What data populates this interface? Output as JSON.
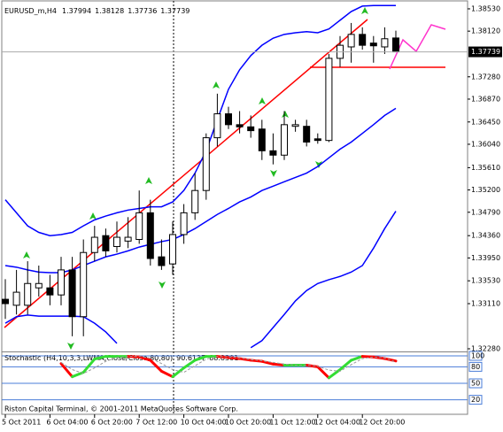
{
  "chart_data": [
    {
      "type": "candlestick",
      "title": "EURUSD_m,H4",
      "quote": [
        1.37994,
        1.38128,
        1.37736,
        1.37739
      ],
      "categories": [
        "5 Oct 2011",
        null,
        null,
        null,
        "6 Oct 04:00",
        null,
        null,
        null,
        "6 Oct 20:00",
        null,
        null,
        null,
        "7 Oct 12:00",
        null,
        null,
        null,
        "10 Oct 04:00",
        null,
        null,
        null,
        "10 Oct 20:00",
        null,
        null,
        null,
        "11 Oct 12:00",
        null,
        null,
        null,
        "12 Oct 04:00",
        null,
        null,
        null,
        "12 Oct 20:00",
        null,
        null,
        null
      ],
      "open": [
        1.3319,
        1.3308,
        1.3308,
        1.334,
        1.334,
        1.3327,
        1.3373,
        1.3287,
        1.3405,
        1.3436,
        1.3416,
        1.3426,
        1.3429,
        1.3478,
        1.3397,
        1.3384,
        1.3438,
        1.3478,
        1.3519,
        1.3616,
        1.366,
        1.364,
        1.3636,
        1.3632,
        1.3592,
        1.3584,
        1.3637,
        1.3637,
        1.3614,
        1.3611,
        1.3762,
        1.3783,
        1.3806,
        1.379,
        1.3783,
        1.37994
      ],
      "high": [
        1.3356,
        1.3373,
        1.3389,
        1.3381,
        1.3364,
        1.3397,
        1.3397,
        1.3429,
        1.3454,
        1.3449,
        1.3462,
        1.347,
        1.3519,
        1.3502,
        1.3429,
        1.3462,
        1.3494,
        1.3551,
        1.3624,
        1.3697,
        1.3673,
        1.3665,
        1.3657,
        1.3649,
        1.3624,
        1.3665,
        1.3649,
        1.3649,
        1.3624,
        1.377,
        1.3803,
        1.3827,
        1.3819,
        1.3803,
        1.3819,
        1.38128
      ],
      "low": [
        1.3283,
        1.3291,
        1.3291,
        1.3324,
        1.3308,
        1.3308,
        1.3251,
        1.3251,
        1.3389,
        1.3397,
        1.3405,
        1.3413,
        1.3421,
        1.3381,
        1.3373,
        1.3364,
        1.3421,
        1.3465,
        1.3502,
        1.36,
        1.3632,
        1.3624,
        1.3616,
        1.3575,
        1.3567,
        1.3575,
        1.3627,
        1.36,
        1.3605,
        1.3608,
        1.3746,
        1.3754,
        1.3778,
        1.3754,
        1.377,
        1.37736
      ],
      "close": [
        1.3311,
        1.3332,
        1.3348,
        1.3348,
        1.3327,
        1.3373,
        1.3287,
        1.3405,
        1.3433,
        1.3408,
        1.3433,
        1.3433,
        1.3478,
        1.3394,
        1.3381,
        1.3438,
        1.3478,
        1.3519,
        1.3616,
        1.366,
        1.364,
        1.3636,
        1.3629,
        1.3592,
        1.3584,
        1.364,
        1.364,
        1.3608,
        1.3611,
        1.3762,
        1.3786,
        1.3806,
        1.3786,
        1.3785,
        1.3798,
        1.37739
      ],
      "up_color": "#ffffff",
      "down_color": "#000000",
      "wick_color": "#000000",
      "series": [
        {
          "color": "#0000ff",
          "values": [
            1.3502,
            1.3478,
            1.3454,
            1.3442,
            1.3436,
            1.3438,
            1.3442,
            1.3454,
            1.3465,
            1.3472,
            1.3478,
            1.3483,
            1.3486,
            1.3489,
            1.3489,
            1.3498,
            1.3519,
            1.3551,
            1.3592,
            1.3649,
            1.3705,
            1.3741,
            1.3767,
            1.3786,
            1.3799,
            1.3806,
            1.3809,
            1.3811,
            1.3809,
            1.3816,
            1.3832,
            1.3848,
            1.3858,
            1.3859,
            1.3859,
            1.3859
          ]
        },
        {
          "color": "#0000ff",
          "values": [
            1.3381,
            1.3378,
            1.3373,
            1.3369,
            1.3368,
            1.3368,
            1.3373,
            1.3381,
            1.3389,
            1.3397,
            1.3402,
            1.3408,
            1.3415,
            1.342,
            1.3425,
            1.3429,
            1.3438,
            1.3449,
            1.3462,
            1.3475,
            1.3486,
            1.3498,
            1.3507,
            1.3519,
            1.3527,
            1.3535,
            1.3543,
            1.3551,
            1.3563,
            1.3579,
            1.3595,
            1.3608,
            1.3624,
            1.364,
            1.3657,
            1.367
          ]
        },
        {
          "color": "#0000ff",
          "values": [
            1.3275,
            1.3287,
            1.329,
            1.3288,
            1.3288,
            1.3288,
            1.3288,
            1.3287,
            1.3275,
            1.3259,
            1.3238,
            null,
            null,
            null,
            null,
            null,
            null,
            null,
            null,
            null,
            null,
            null,
            1.323,
            1.3243,
            1.3267,
            1.3291,
            1.3316,
            1.3335,
            1.3348,
            1.3355,
            1.3361,
            1.3369,
            1.3381,
            1.3413,
            1.3449,
            1.3481
          ]
        }
      ],
      "ylim": [
        1.32231,
        1.38676
      ],
      "yticks": [
        {
          "value": 1.3853,
          "label": "1.38530"
        },
        {
          "value": 1.3812,
          "label": "1.38120"
        },
        {
          "value": 1.3728,
          "label": "1.37280"
        },
        {
          "value": 1.3687,
          "label": "1.36870"
        },
        {
          "value": 1.3645,
          "label": "1.36450"
        },
        {
          "value": 1.3604,
          "label": "1.36040"
        },
        {
          "value": 1.3561,
          "label": "1.35610"
        },
        {
          "value": 1.352,
          "label": "1.35200"
        },
        {
          "value": 1.3479,
          "label": "1.34790"
        },
        {
          "value": 1.3436,
          "label": "1.34360"
        },
        {
          "value": 1.3395,
          "label": "1.33950"
        },
        {
          "value": 1.3353,
          "label": "1.33530"
        },
        {
          "value": 1.3311,
          "label": "1.33110"
        },
        {
          "value": 1.3228,
          "label": "1.32280"
        }
      ],
      "grid": false
    },
    {
      "type": "line",
      "title": "Stochastic (H4,10,3,3,LWMA,Close/Close,80,80)",
      "series": [
        {
          "up_color": "#33dd33",
          "down_color": "#ff0000",
          "values": [
            null,
            null,
            null,
            null,
            null,
            86,
            62,
            70,
            94,
            99,
            99,
            99,
            98,
            92,
            72,
            62,
            78,
            92,
            99,
            99,
            97,
            95,
            92,
            90,
            85,
            83,
            83,
            83,
            80,
            60,
            75,
            92,
            99,
            98,
            95,
            90.6137
          ]
        },
        {
          "color": "#999999",
          "dashed": true,
          "values": [
            null,
            null,
            null,
            null,
            null,
            88,
            75,
            68,
            78,
            90,
            97,
            99,
            99,
            96,
            86,
            75,
            70,
            82,
            94,
            99,
            98,
            96,
            93,
            91,
            88,
            85,
            83,
            83,
            81,
            74,
            72,
            84,
            95,
            98,
            96,
            88.8301
          ]
        }
      ],
      "ylim": [
        -6.4,
        106.4
      ],
      "yticks": [
        100,
        80,
        50,
        20
      ],
      "level_color": "#4a7cd8"
    }
  ],
  "footer": "Riston Capital Terminal, © 2001-2011 MetaQuotes Software Corp."
}
